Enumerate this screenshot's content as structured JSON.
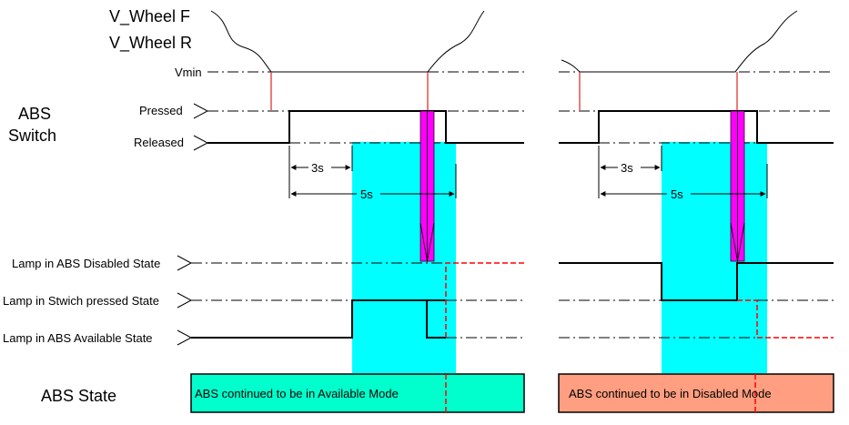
{
  "labels": {
    "wheel_front": "V_Wheel F",
    "wheel_rear": "V_Wheel R",
    "vmin": "Vmin",
    "abs_switch_line1": "ABS",
    "abs_switch_line2": "Switch",
    "pressed": "Pressed",
    "released": "Released",
    "lamp_disabled": "Lamp in ABS Disabled State",
    "lamp_switch_pressed": "Lamp in Stwich pressed State",
    "lamp_available": "Lamp in ABS Available State",
    "abs_state": "ABS State"
  },
  "left_panel": {
    "dim_short": "3s",
    "dim_long": "5s",
    "state_text": "ABS continued to be in Available Mode"
  },
  "right_panel": {
    "dim_short": "3s",
    "dim_long": "5s",
    "state_text": "ABS continued to be in Disabled Mode"
  },
  "colors": {
    "highlight_window": "#00ffff",
    "button_press_arrow": "#ff00ff",
    "available_state_fill": "#00ffcc",
    "disabled_state_fill": "#ff9e80",
    "transition_marker": "#ff0000"
  }
}
